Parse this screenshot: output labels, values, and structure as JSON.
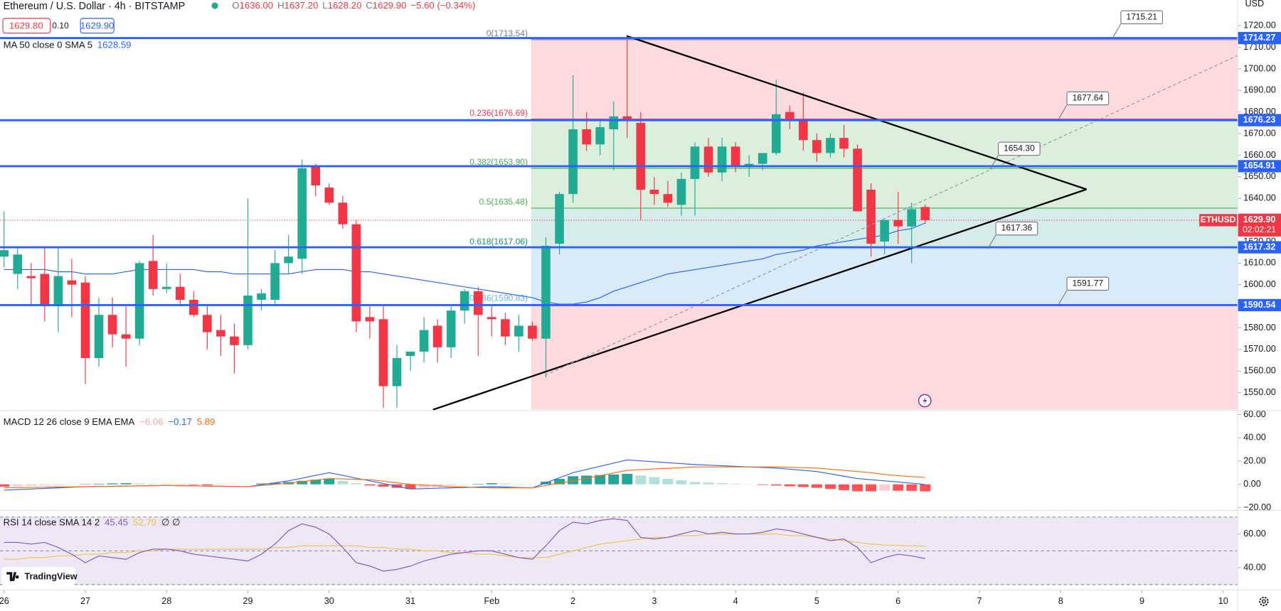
{
  "header": {
    "ohlc": [
      {
        "key": "O",
        "value": "1636.00"
      },
      {
        "key": "H",
        "value": "1637.20"
      },
      {
        "key": "L",
        "value": "1628.20"
      },
      {
        "key": "C",
        "value": "1629.90"
      }
    ],
    "change": "−5.60 (−0.34%)",
    "bid": "1629.80",
    "spread": "0.10",
    "ask": "1629.90",
    "logo": "TradingView"
  },
  "chart_data": [
    {
      "type": "candlestick",
      "title": "Ethereum / U.S. Dollar · 4h · BITSTAMP",
      "y_axis_label": "USD",
      "up_color": "#22ab94",
      "down_color": "#f23645",
      "open": [
        1613,
        1605,
        1604,
        1605,
        1590,
        1602,
        1601,
        1566,
        1586,
        1577,
        1575,
        1611,
        1598,
        1599,
        1593,
        1586,
        1579,
        1576,
        1572,
        1593,
        1593,
        1610,
        1612,
        1655,
        1645,
        1638,
        1628,
        1585,
        1584,
        1553,
        1567,
        1569,
        1581,
        1571,
        1588,
        1597,
        1585,
        1584,
        1576,
        1581,
        1575,
        1619,
        1642,
        1672,
        1665,
        1672,
        1678,
        1675,
        1644,
        1642,
        1637,
        1649,
        1664,
        1652,
        1664,
        1655,
        1656,
        1661,
        1680,
        1676,
        1667,
        1661,
        1668,
        1663,
        1644,
        1620,
        1630,
        1627,
        1636
      ],
      "high": [
        1634,
        1618,
        1610,
        1617,
        1617,
        1612,
        1604,
        1594,
        1594,
        1590,
        1611,
        1623,
        1610,
        1605,
        1597,
        1590,
        1586,
        1582,
        1640,
        1598,
        1616,
        1623,
        1658,
        1656,
        1647,
        1641,
        1630,
        1590,
        1590,
        1572,
        1569,
        1585,
        1584,
        1590,
        1598,
        1599,
        1590,
        1587,
        1586,
        1583,
        1622,
        1643,
        1697,
        1680,
        1676,
        1685,
        1713.54,
        1680,
        1650,
        1648,
        1652,
        1666,
        1668,
        1668,
        1666,
        1660,
        1660,
        1695,
        1683,
        1689,
        1670,
        1670,
        1674,
        1665,
        1647,
        1630,
        1643,
        1638,
        1637.2
      ],
      "low": [
        1608,
        1598,
        1590,
        1583,
        1578,
        1585,
        1554,
        1562,
        1571,
        1562,
        1572,
        1595,
        1596,
        1590,
        1585,
        1570,
        1567,
        1559,
        1570,
        1588,
        1591,
        1605,
        1605,
        1641,
        1637,
        1626,
        1578,
        1575,
        1543,
        1543,
        1560,
        1564,
        1564,
        1566,
        1582,
        1567,
        1576,
        1572,
        1569,
        1574,
        1557,
        1614,
        1638,
        1662,
        1660,
        1653,
        1668,
        1630,
        1637,
        1636,
        1632,
        1632,
        1650,
        1648,
        1652,
        1650,
        1653,
        1660,
        1672,
        1662,
        1657,
        1659,
        1659,
        1634,
        1613,
        1614,
        1619,
        1610,
        1628.2
      ],
      "close": [
        1616,
        1614,
        1603,
        1590,
        1604,
        1600,
        1566,
        1586,
        1577,
        1575,
        1610,
        1598,
        1599,
        1593,
        1586,
        1578,
        1576,
        1572,
        1595,
        1596,
        1610,
        1613,
        1654,
        1646,
        1638,
        1628,
        1583,
        1583,
        1553,
        1566,
        1569,
        1579,
        1571,
        1588,
        1597,
        1586,
        1584,
        1576,
        1581,
        1575,
        1618,
        1642,
        1672,
        1665,
        1673,
        1678,
        1676,
        1644,
        1642,
        1638,
        1649,
        1664,
        1652,
        1664,
        1655,
        1656,
        1661,
        1679,
        1676,
        1667,
        1661,
        1668,
        1663,
        1634,
        1619,
        1630,
        1627,
        1635,
        1629.9
      ],
      "series": [
        {
          "name": "MA 50 close 0 SMA 5",
          "color": "#2962ff",
          "last_label": "1628.59",
          "values": [
            1607,
            1607,
            1607,
            1607,
            1606,
            1606,
            1605,
            1605,
            1605,
            1606,
            1607,
            1607,
            1607,
            1607,
            1607,
            1606,
            1606,
            1605,
            1605,
            1605,
            1605,
            1605,
            1606,
            1607,
            1607,
            1607,
            1606,
            1606,
            1605,
            1604,
            1603,
            1602,
            1601,
            1600,
            1599,
            1598,
            1597,
            1596,
            1595,
            1594,
            1592,
            1591,
            1591,
            1592,
            1594,
            1597,
            1599,
            1601,
            1603,
            1605,
            1606,
            1607,
            1608,
            1609,
            1610,
            1611,
            1612,
            1614,
            1615,
            1616,
            1618,
            1619,
            1620,
            1621,
            1622,
            1623,
            1625,
            1626,
            1628.59
          ]
        }
      ],
      "ylim": [
        1542.1,
        1731.9
      ],
      "yticks": [
        {
          "value": 1550,
          "label": "1550.00"
        },
        {
          "value": 1560,
          "label": "1560.00"
        },
        {
          "value": 1570,
          "label": "1570.00"
        },
        {
          "value": 1580,
          "label": "1580.00"
        },
        {
          "value": 1590,
          "label": "1590.00"
        },
        {
          "value": 1600,
          "label": "1600.00"
        },
        {
          "value": 1610,
          "label": "1610.00"
        },
        {
          "value": 1620,
          "label": "1620.00"
        },
        {
          "value": 1630,
          "label": "1630.00"
        },
        {
          "value": 1640,
          "label": "1640.00"
        },
        {
          "value": 1650,
          "label": "1650.00"
        },
        {
          "value": 1660,
          "label": "1660.00"
        },
        {
          "value": 1670,
          "label": "1670.00"
        },
        {
          "value": 1680,
          "label": "1680.00"
        },
        {
          "value": 1690,
          "label": "1690.00"
        },
        {
          "value": 1700,
          "label": "1700.00"
        },
        {
          "value": 1710,
          "label": "1710.00"
        },
        {
          "value": 1720,
          "label": "1720.00"
        }
      ],
      "xlim": [
        -0.3,
        91.07
      ],
      "xticks": [
        {
          "value": 0,
          "label": "26"
        },
        {
          "value": 6,
          "label": "27"
        },
        {
          "value": 12,
          "label": "28"
        },
        {
          "value": 18,
          "label": "29"
        },
        {
          "value": 24,
          "label": "30"
        },
        {
          "value": 30,
          "label": "31"
        },
        {
          "value": 36,
          "label": "Feb"
        },
        {
          "value": 42,
          "label": "2"
        },
        {
          "value": 48,
          "label": "3"
        },
        {
          "value": 54,
          "label": "4"
        },
        {
          "value": 60,
          "label": "5"
        },
        {
          "value": 66,
          "label": "6"
        },
        {
          "value": 72,
          "label": "7"
        },
        {
          "value": 78,
          "label": "8"
        },
        {
          "value": 84,
          "label": "9"
        },
        {
          "value": 90,
          "label": "10"
        }
      ],
      "fib_levels": [
        {
          "label": "0(1713.54)",
          "value": 1713.54,
          "color": "#787b86",
          "fill": "#fcdadd"
        },
        {
          "label": "0.236(1676.69)",
          "value": 1676.69,
          "color": "#f23645",
          "fill": "#dcefdc"
        },
        {
          "label": "0.382(1653.90)",
          "value": 1653.9,
          "color": "#4caf50",
          "fill": "#dcefdc"
        },
        {
          "label": "0.5(1635.48)",
          "value": 1635.48,
          "color": "#4caf50",
          "fill": "#d6ece8"
        },
        {
          "label": "0.618(1617.06)",
          "value": 1617.06,
          "color": "#089981",
          "fill": "#d9ebf9"
        },
        {
          "label": "0.786(1590.83)",
          "value": 1590.83,
          "color": "#64b5f6",
          "fill": "#fcdadd"
        }
      ],
      "horizontal_lines": {
        "color": "#2962ff",
        "levels": [
          {
            "value": 1714.27,
            "label": "1714.27"
          },
          {
            "value": 1676.23,
            "label": "1676.23"
          },
          {
            "value": 1654.91,
            "label": "1654.91"
          },
          {
            "value": 1617.32,
            "label": "1617.32"
          },
          {
            "value": 1590.54,
            "label": "1590.54"
          }
        ]
      },
      "callouts": [
        {
          "value": 1715.21,
          "label": "1715.21"
        },
        {
          "value": 1677.64,
          "label": "1677.64"
        },
        {
          "value": 1654.3,
          "label": "1654.30"
        },
        {
          "value": 1617.36,
          "label": "1617.36"
        },
        {
          "value": 1591.77,
          "label": "1591.77"
        }
      ],
      "last": {
        "symbol": "ETHUSD",
        "price": {
          "value": 1629.9,
          "label": "1629.90"
        },
        "countdown": "02:02:21",
        "color": "#f23645"
      }
    },
    {
      "type": "macd",
      "title": "MACD 12 26 close 9 EMA EMA",
      "ylim": [
        -21.4,
        62.8
      ],
      "yticks": [
        {
          "value": 60,
          "label": "60.00"
        },
        {
          "value": 40,
          "label": "40.00"
        },
        {
          "value": 20,
          "label": "20.00"
        },
        {
          "value": 0,
          "label": "0.00"
        },
        {
          "value": -20,
          "label": "−20.00"
        }
      ],
      "histogram": {
        "last_label": "−6.06",
        "label_color": "#faa1a4",
        "colors": {
          "grow_above": "#26a69a",
          "fall_above": "#b2dfdb",
          "grow_below": "#ffcdd2",
          "fall_below": "#ff5252"
        },
        "values": [
          -2,
          -1.7,
          -1.3,
          -1,
          -0.7,
          -0.3,
          0.3,
          0.5,
          0.8,
          1,
          0.8,
          0.5,
          0.3,
          -0.3,
          -0.5,
          -0.8,
          -0.5,
          -0.3,
          -0.2,
          0.7,
          1.3,
          2,
          3,
          4,
          5,
          3,
          1,
          -1,
          -2,
          -3,
          -4,
          -3,
          -2,
          -1,
          -0.4,
          0.4,
          1,
          0.7,
          0.3,
          0.1,
          2.3,
          4.7,
          7,
          7.5,
          8,
          8.5,
          9,
          7.6,
          6.2,
          4.8,
          3.4,
          2,
          1.5,
          1,
          0.5,
          0.2,
          -0.5,
          -1,
          -1.7,
          -2.3,
          -3,
          -4,
          -5,
          -6,
          -6,
          -5.5,
          -5.5,
          -5.6,
          -6.06
        ]
      },
      "series": [
        {
          "color": "#2962ff",
          "last_label": "−0.17",
          "values": [
            -5,
            -4.5,
            -4,
            -3.5,
            -3,
            -2.5,
            -2,
            -1.8,
            -1.7,
            -1.5,
            -1.3,
            -1.2,
            -1,
            -1.2,
            -1.3,
            -1.5,
            -1.7,
            -1.8,
            -2,
            -0.3,
            1.3,
            3,
            5.3,
            7.7,
            10,
            7.7,
            5.3,
            3,
            0.7,
            -1.7,
            -4,
            -3.7,
            -3.3,
            -3,
            -2.7,
            -2.3,
            -2,
            -2.3,
            -2.7,
            -3,
            1.3,
            5.7,
            10,
            12.8,
            15.5,
            18.3,
            21,
            20.2,
            19.4,
            18.6,
            17.8,
            17,
            16.5,
            16,
            15.5,
            15,
            14.5,
            14,
            13,
            12,
            11,
            9,
            7,
            5,
            4,
            3,
            2,
            1,
            -0.17
          ]
        },
        {
          "color": "#ff6d00",
          "last_label": "5.89",
          "values": [
            -3,
            -2.8,
            -2.7,
            -2.5,
            -2.3,
            -2.2,
            -2,
            -1.8,
            -1.7,
            -1.5,
            -1.3,
            -1.2,
            -1,
            -1.2,
            -1.3,
            -1.5,
            -1.7,
            -1.8,
            -2,
            -1,
            0,
            1,
            2.3,
            3.7,
            5,
            4.7,
            4.3,
            4,
            2.7,
            1.3,
            0,
            -0.7,
            -1.3,
            -2,
            -2.3,
            -2.7,
            -3,
            -3,
            -3,
            -3,
            -1,
            1,
            3,
            5.3,
            7.5,
            9.8,
            12,
            12.6,
            13.2,
            13.8,
            14.4,
            15,
            15,
            15,
            15,
            15,
            15,
            15,
            14.7,
            14.3,
            14,
            13,
            12,
            11,
            10,
            8.5,
            7.5,
            6.6,
            5.89
          ]
        }
      ]
    },
    {
      "type": "rsi",
      "title": "RSI 14 close SMA 14 2",
      "extra_label": "∅ ∅",
      "ylim": [
        27.3,
        73.2
      ],
      "yticks": [
        {
          "value": 60,
          "label": "60.00"
        },
        {
          "value": 40,
          "label": "40.00"
        }
      ],
      "band_levels": [
        70,
        50,
        30
      ],
      "band_fill": "#ede7f6",
      "series": [
        {
          "color": "#7e57c2",
          "last_label": "45.45",
          "values": [
            55,
            55,
            54,
            55,
            52,
            48,
            43,
            47,
            46,
            45,
            49,
            51,
            51,
            50,
            48,
            47,
            46,
            45,
            44,
            48,
            54,
            62,
            66,
            64,
            60,
            52,
            43,
            41,
            38,
            39,
            41,
            44,
            46,
            48,
            49,
            50,
            50,
            48,
            46,
            45,
            53,
            62,
            67,
            66,
            68,
            69,
            68,
            58,
            57,
            58,
            60,
            62,
            60,
            61,
            60,
            60,
            61,
            63,
            62,
            60,
            58,
            56,
            57,
            52,
            43,
            46,
            48,
            47,
            45.45
          ]
        },
        {
          "color": "#f5c242",
          "last_label": "52.79",
          "values": [
            45,
            45,
            46,
            46,
            47,
            47,
            48,
            48,
            49,
            49,
            50,
            50,
            51,
            51,
            51,
            51,
            51,
            51,
            51,
            51,
            52,
            52,
            53,
            53,
            53,
            53,
            53,
            52,
            52,
            51,
            51,
            50,
            50,
            49,
            49,
            48,
            48,
            47,
            46,
            46,
            46,
            48,
            50,
            52,
            54,
            55,
            56,
            57,
            58,
            58,
            59,
            59,
            60,
            60,
            60,
            60,
            60,
            60,
            59,
            59,
            58,
            57,
            56,
            55,
            54,
            53.5,
            53.2,
            53,
            52.79
          ]
        }
      ]
    }
  ]
}
